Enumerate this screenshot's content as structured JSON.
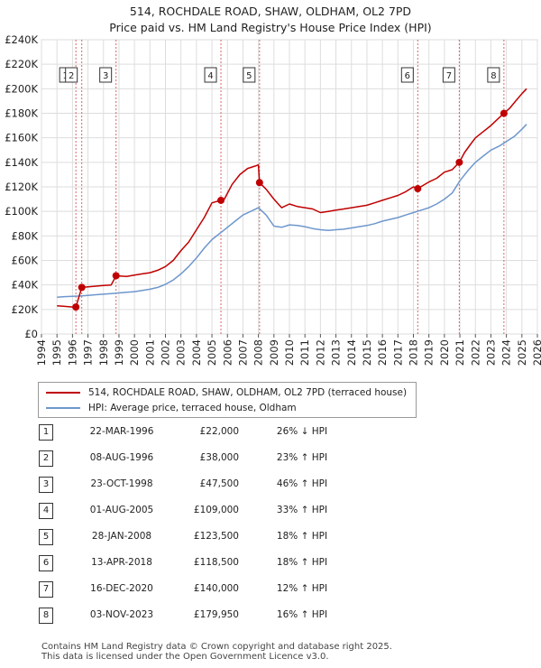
{
  "title_line1": "514, ROCHDALE ROAD, SHAW, OLDHAM, OL2 7PD",
  "title_line2": "Price paid vs. HM Land Registry's House Price Index (HPI)",
  "legend": {
    "property": "514, ROCHDALE ROAD, SHAW, OLDHAM, OL2 7PD (terraced house)",
    "hpi": "HPI: Average price, terraced house, Oldham"
  },
  "colors": {
    "property": "#c00000",
    "hpi": "#6e97cc",
    "grid": "#dddddd",
    "marker": "#c00000"
  },
  "sales": [
    {
      "n": "1",
      "date": "22-MAR-1996",
      "price": "£22,000",
      "hpi": "26% ↓ HPI"
    },
    {
      "n": "2",
      "date": "08-AUG-1996",
      "price": "£38,000",
      "hpi": "23% ↑ HPI"
    },
    {
      "n": "3",
      "date": "23-OCT-1998",
      "price": "£47,500",
      "hpi": "46% ↑ HPI"
    },
    {
      "n": "4",
      "date": "01-AUG-2005",
      "price": "£109,000",
      "hpi": "33% ↑ HPI"
    },
    {
      "n": "5",
      "date": "28-JAN-2008",
      "price": "£123,500",
      "hpi": "18% ↑ HPI"
    },
    {
      "n": "6",
      "date": "13-APR-2018",
      "price": "£118,500",
      "hpi": "18% ↑ HPI"
    },
    {
      "n": "7",
      "date": "16-DEC-2020",
      "price": "£140,000",
      "hpi": "12% ↑ HPI"
    },
    {
      "n": "8",
      "date": "03-NOV-2023",
      "price": "£179,950",
      "hpi": "16% ↑ HPI"
    }
  ],
  "footer_line1": "Contains HM Land Registry data © Crown copyright and database right 2025.",
  "footer_line2": "This data is licensed under the Open Government Licence v3.0.",
  "chart_data": {
    "type": "line",
    "title": "514, ROCHDALE ROAD, SHAW, OLDHAM, OL2 7PD",
    "subtitle": "Price paid vs. HM Land Registry's House Price Index (HPI)",
    "xlabel": "",
    "ylabel": "",
    "xlim": [
      1994,
      2026
    ],
    "ylim": [
      0,
      240000
    ],
    "x_ticks": [
      1994,
      1995,
      1996,
      1997,
      1998,
      1999,
      2000,
      2001,
      2002,
      2003,
      2004,
      2005,
      2006,
      2007,
      2008,
      2009,
      2010,
      2011,
      2012,
      2013,
      2014,
      2015,
      2016,
      2017,
      2018,
      2019,
      2020,
      2021,
      2022,
      2023,
      2024,
      2025,
      2026
    ],
    "y_ticks": [
      0,
      20000,
      40000,
      60000,
      80000,
      100000,
      120000,
      140000,
      160000,
      180000,
      200000,
      220000,
      240000
    ],
    "y_tick_labels": [
      "£0",
      "£20K",
      "£40K",
      "£60K",
      "£80K",
      "£100K",
      "£120K",
      "£140K",
      "£160K",
      "£180K",
      "£200K",
      "£220K",
      "£240K"
    ],
    "grid": true,
    "sale_points": [
      {
        "label": "1",
        "x": 1996.22,
        "y": 22000
      },
      {
        "label": "2",
        "x": 1996.6,
        "y": 38000
      },
      {
        "label": "3",
        "x": 1998.81,
        "y": 47500
      },
      {
        "label": "4",
        "x": 2005.58,
        "y": 109000
      },
      {
        "label": "5",
        "x": 2008.07,
        "y": 123500
      },
      {
        "label": "6",
        "x": 2018.28,
        "y": 118500
      },
      {
        "label": "7",
        "x": 2020.96,
        "y": 140000
      },
      {
        "label": "8",
        "x": 2023.84,
        "y": 179950
      }
    ],
    "series": [
      {
        "name": "514, ROCHDALE ROAD, SHAW, OLDHAM, OL2 7PD (terraced house)",
        "x": [
          1995.0,
          1995.5,
          1996.0,
          1996.22,
          1996.6,
          1997.0,
          1997.5,
          1998.0,
          1998.5,
          1998.81,
          1999.5,
          2000.0,
          2000.5,
          2001.0,
          2001.5,
          2002.0,
          2002.5,
          2003.0,
          2003.5,
          2004.0,
          2004.5,
          2005.0,
          2005.58,
          2005.8,
          2006.3,
          2006.8,
          2007.3,
          2007.8,
          2008.0,
          2008.07,
          2008.5,
          2009.0,
          2009.5,
          2010.0,
          2010.5,
          2011.0,
          2011.5,
          2012.0,
          2012.5,
          2013.0,
          2013.5,
          2014.0,
          2014.5,
          2015.0,
          2015.5,
          2016.0,
          2016.5,
          2017.0,
          2017.5,
          2018.0,
          2018.28,
          2018.6,
          2019.0,
          2019.5,
          2020.0,
          2020.5,
          2020.96,
          2021.3,
          2021.7,
          2022.0,
          2022.5,
          2023.0,
          2023.5,
          2023.84,
          2024.2,
          2024.6,
          2025.0,
          2025.3
        ],
        "values": [
          23000,
          22500,
          22000,
          22000,
          38000,
          38500,
          39000,
          39500,
          40000,
          47500,
          47000,
          48000,
          49000,
          50000,
          52000,
          55000,
          60000,
          68000,
          75000,
          85000,
          95000,
          107000,
          109000,
          110000,
          122000,
          130000,
          135000,
          137000,
          138000,
          123500,
          118000,
          110000,
          103000,
          106000,
          104000,
          103000,
          102000,
          99000,
          100000,
          101000,
          102000,
          103000,
          104000,
          105000,
          107000,
          109000,
          111000,
          113000,
          116000,
          120000,
          118500,
          121000,
          124000,
          127000,
          132000,
          134000,
          140000,
          148000,
          155000,
          160000,
          165000,
          170000,
          176000,
          179950,
          184000,
          190000,
          196000,
          200000
        ]
      },
      {
        "name": "HPI: Average price, terraced house, Oldham",
        "x": [
          1995.0,
          1995.5,
          1996.0,
          1996.5,
          1997.0,
          1997.5,
          1998.0,
          1998.5,
          1999.0,
          1999.5,
          2000.0,
          2000.5,
          2001.0,
          2001.5,
          2002.0,
          2002.5,
          2003.0,
          2003.5,
          2004.0,
          2004.5,
          2005.0,
          2005.5,
          2006.0,
          2006.5,
          2007.0,
          2007.5,
          2008.0,
          2008.5,
          2009.0,
          2009.5,
          2010.0,
          2010.5,
          2011.0,
          2011.5,
          2012.0,
          2012.5,
          2013.0,
          2013.5,
          2014.0,
          2014.5,
          2015.0,
          2015.5,
          2016.0,
          2016.5,
          2017.0,
          2017.5,
          2018.0,
          2018.5,
          2019.0,
          2019.5,
          2020.0,
          2020.5,
          2021.0,
          2021.5,
          2022.0,
          2022.5,
          2023.0,
          2023.5,
          2024.0,
          2024.5,
          2025.0,
          2025.3
        ],
        "values": [
          30000,
          30500,
          30800,
          31000,
          31500,
          32000,
          32500,
          33000,
          33500,
          34000,
          34500,
          35500,
          36500,
          38000,
          40500,
          44000,
          49000,
          55000,
          62000,
          70000,
          77000,
          82000,
          87000,
          92000,
          97000,
          100000,
          103000,
          97000,
          88000,
          87000,
          89000,
          88500,
          87500,
          86000,
          85000,
          84500,
          85000,
          85500,
          86500,
          87500,
          88500,
          90000,
          92000,
          93500,
          95000,
          97000,
          99000,
          101000,
          103000,
          106000,
          110000,
          115000,
          125000,
          133000,
          140000,
          145000,
          150000,
          153000,
          157000,
          161000,
          167000,
          171000
        ]
      }
    ]
  }
}
